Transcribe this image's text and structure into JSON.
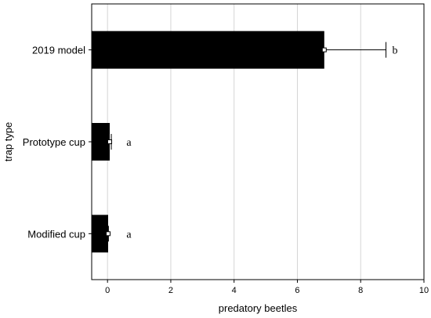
{
  "chart_data": {
    "type": "bar",
    "orientation": "horizontal",
    "categories": [
      "2019 model",
      "Prototype cup",
      "Modified cup"
    ],
    "values": [
      6.85,
      0.07,
      0.02
    ],
    "error_upper": [
      8.8,
      0.12,
      0.03
    ],
    "significance_letters": [
      "b",
      "a",
      "a"
    ],
    "xlabel": "predatory beetles",
    "ylabel": "trap type",
    "xlim": [
      -0.5,
      10
    ],
    "xticks": [
      0,
      2,
      4,
      6,
      8,
      10
    ],
    "grid": "vertical",
    "bar_color": "#000000"
  }
}
